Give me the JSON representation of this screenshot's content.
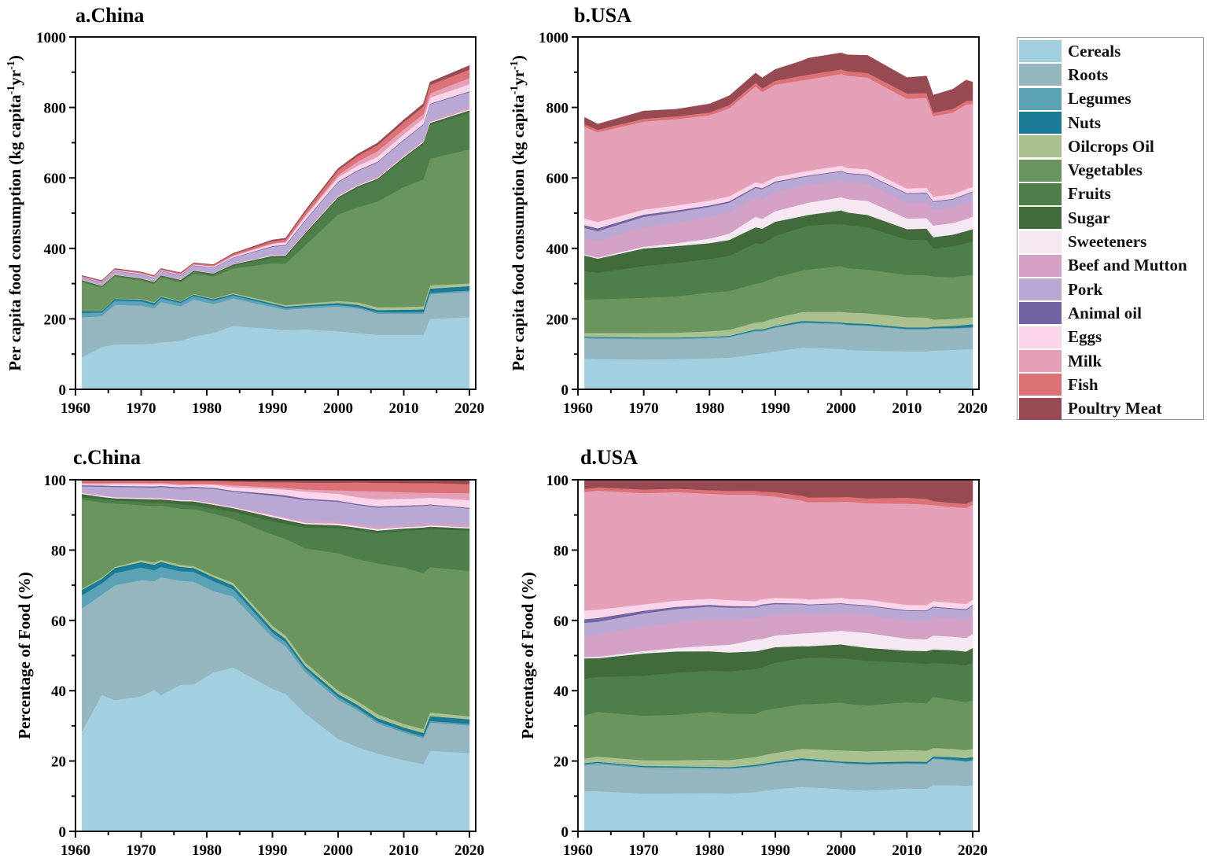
{
  "figure": {
    "legend": [
      {
        "name": "Cereals",
        "color": "#a3d0e1"
      },
      {
        "name": "Roots",
        "color": "#95b5bf"
      },
      {
        "name": "Legumes",
        "color": "#5ba2b4"
      },
      {
        "name": "Nuts",
        "color": "#1b7b96"
      },
      {
        "name": "Oilcrops Oil",
        "color": "#a9c18e"
      },
      {
        "name": "Vegetables",
        "color": "#6a955f"
      },
      {
        "name": "Fruits",
        "color": "#4e7f4a"
      },
      {
        "name": "Sugar",
        "color": "#426b3b"
      },
      {
        "name": "Sweeteners",
        "color": "#f6e8f2"
      },
      {
        "name": "Beef and Mutton",
        "color": "#d3a0c6"
      },
      {
        "name": "Pork",
        "color": "#b8a8d3"
      },
      {
        "name": "Animal oil",
        "color": "#7263a3"
      },
      {
        "name": "Eggs",
        "color": "#fbd5ea"
      },
      {
        "name": "Milk",
        "color": "#e4a0b6"
      },
      {
        "name": "Fish",
        "color": "#dc7176"
      },
      {
        "name": "Poultry Meat",
        "color": "#984a52"
      }
    ]
  },
  "chart_data": [
    {
      "panel": "a",
      "type": "area",
      "stacked": true,
      "title": "a.China",
      "xlabel": "",
      "ylabel": "Per capita food consumption (kg capita-1 yr-1)",
      "ylabel_parts": [
        "Per capita food consumption (kg capita",
        "-1",
        "yr",
        "-1",
        ")"
      ],
      "xlim": [
        1960,
        2020
      ],
      "ylim": [
        0,
        1000
      ],
      "xticks": [
        "1960",
        "1970",
        "1980",
        "1990",
        "2000",
        "2010",
        "2020"
      ],
      "yticks": [
        "0",
        "200",
        "400",
        "600",
        "800",
        "1000"
      ],
      "country": "China",
      "x": [
        1961,
        1964,
        1966,
        1970,
        1972,
        1973,
        1976,
        1978,
        1981,
        1984,
        1990,
        1992,
        1995,
        2000,
        2003,
        2006,
        2010,
        2013,
        2014,
        2020
      ],
      "series_values": [
        [
          92,
          120,
          128,
          128,
          130,
          133,
          138,
          150,
          160,
          180,
          172,
          168,
          170,
          165,
          160,
          155,
          155,
          155,
          200,
          205
        ],
        [
          113,
          88,
          112,
          110,
          100,
          115,
          98,
          105,
          82,
          78,
          62,
          58,
          60,
          70,
          70,
          60,
          60,
          60,
          70,
          72
        ],
        [
          12,
          10,
          12,
          12,
          10,
          10,
          9,
          10,
          10,
          8,
          6,
          5,
          5,
          5,
          4,
          4,
          4,
          4,
          4,
          4
        ],
        [
          5,
          4,
          5,
          5,
          5,
          5,
          4,
          4,
          4,
          4,
          4,
          4,
          4,
          5,
          6,
          6,
          7,
          8,
          12,
          12
        ],
        [
          1,
          1,
          1,
          2,
          2,
          2,
          2,
          2,
          2,
          3,
          4,
          4,
          5,
          6,
          7,
          8,
          8,
          9,
          9,
          8
        ],
        [
          82,
          66,
          62,
          52,
          52,
          53,
          53,
          58,
          62,
          70,
          110,
          118,
          165,
          245,
          270,
          300,
          340,
          360,
          360,
          380
        ],
        [
          2,
          3,
          3,
          3,
          3,
          3,
          4,
          4,
          5,
          8,
          16,
          18,
          30,
          45,
          55,
          60,
          80,
          100,
          95,
          105
        ],
        [
          3,
          2,
          2,
          3,
          3,
          3,
          3,
          4,
          4,
          4,
          5,
          5,
          5,
          5,
          5,
          5,
          5,
          5,
          6,
          6
        ],
        [
          1,
          1,
          1,
          1,
          1,
          1,
          1,
          1,
          1,
          1,
          2,
          2,
          2,
          3,
          3,
          3,
          3,
          3,
          3,
          3
        ],
        [
          1,
          1,
          1,
          1,
          1,
          1,
          1,
          1,
          1,
          1,
          2,
          2,
          3,
          4,
          4,
          5,
          5,
          5,
          6,
          7
        ],
        [
          5,
          7,
          9,
          9,
          9,
          10,
          10,
          12,
          14,
          16,
          22,
          24,
          30,
          35,
          36,
          38,
          40,
          42,
          44,
          42
        ],
        [
          1,
          1,
          1,
          1,
          1,
          1,
          1,
          1,
          1,
          1,
          2,
          2,
          2,
          2,
          2,
          2,
          2,
          2,
          2,
          2
        ],
        [
          1,
          1,
          2,
          2,
          2,
          2,
          2,
          2,
          3,
          4,
          6,
          7,
          10,
          12,
          13,
          14,
          15,
          16,
          17,
          20
        ],
        [
          1,
          1,
          1,
          1,
          1,
          1,
          1,
          1,
          1,
          2,
          2,
          2,
          3,
          6,
          12,
          16,
          14,
          12,
          12,
          18
        ],
        [
          2,
          2,
          2,
          2,
          2,
          2,
          3,
          3,
          3,
          4,
          6,
          7,
          10,
          14,
          16,
          17,
          20,
          22,
          24,
          24
        ],
        [
          1,
          1,
          1,
          1,
          1,
          1,
          1,
          1,
          1,
          2,
          3,
          3,
          4,
          5,
          5,
          6,
          7,
          8,
          8,
          11
        ]
      ]
    },
    {
      "panel": "b",
      "type": "area",
      "stacked": true,
      "title": "b.USA",
      "xlabel": "",
      "ylabel": "Per capita food consumption (kg capita-1 yr-1)",
      "ylabel_parts": [
        "Per capita food consumption (kg capita",
        "-1",
        "yr",
        "-1",
        ")"
      ],
      "xlim": [
        1960,
        2020
      ],
      "ylim": [
        0,
        1000
      ],
      "xticks": [
        "1960",
        "1970",
        "1980",
        "1990",
        "2000",
        "2010",
        "2020"
      ],
      "yticks": [
        "0",
        "200",
        "400",
        "600",
        "800",
        "1000"
      ],
      "country": "USA",
      "x": [
        1961,
        1963,
        1970,
        1975,
        1980,
        1983,
        1987,
        1988,
        1990,
        1994,
        1995,
        2000,
        2001,
        2004,
        2010,
        2013,
        2014,
        2017,
        2019,
        2020
      ],
      "series_values": [
        [
          88,
          86,
          85,
          86,
          88,
          90,
          100,
          102,
          108,
          118,
          118,
          115,
          112,
          110,
          108,
          108,
          110,
          112,
          114,
          115
        ],
        [
          57,
          58,
          58,
          57,
          57,
          58,
          65,
          63,
          67,
          70,
          70,
          70,
          70,
          70,
          62,
          62,
          62,
          60,
          60,
          60
        ],
        [
          3,
          3,
          2,
          2,
          2,
          2,
          2,
          2,
          2,
          2,
          2,
          2,
          2,
          2,
          2,
          2,
          2,
          2,
          2,
          2
        ],
        [
          2,
          2,
          2,
          2,
          2,
          2,
          3,
          3,
          3,
          4,
          4,
          3,
          4,
          4,
          4,
          4,
          4,
          6,
          7,
          8
        ],
        [
          10,
          11,
          13,
          14,
          16,
          17,
          20,
          21,
          23,
          25,
          26,
          30,
          30,
          30,
          29,
          28,
          20,
          20,
          20,
          20
        ],
        [
          95,
          96,
          100,
          103,
          110,
          110,
          110,
          112,
          115,
          118,
          120,
          130,
          126,
          124,
          120,
          120,
          122,
          118,
          120,
          120
        ],
        [
          80,
          75,
          90,
          95,
          95,
          100,
          115,
          110,
          118,
          122,
          125,
          120,
          122,
          120,
          100,
          100,
          80,
          88,
          92,
          95
        ],
        [
          45,
          40,
          50,
          48,
          45,
          45,
          45,
          43,
          40,
          32,
          30,
          38,
          36,
          35,
          30,
          32,
          32,
          33,
          34,
          35
        ],
        [
          3,
          3,
          5,
          8,
          13,
          18,
          30,
          28,
          30,
          34,
          35,
          37,
          38,
          40,
          30,
          30,
          33,
          33,
          34,
          35
        ],
        [
          47,
          48,
          55,
          58,
          62,
          60,
          55,
          56,
          55,
          52,
          50,
          47,
          48,
          50,
          45,
          46,
          45,
          45,
          45,
          45
        ],
        [
          28,
          27,
          30,
          30,
          28,
          28,
          27,
          28,
          26,
          25,
          25,
          26,
          24,
          23,
          25,
          25,
          22,
          22,
          25,
          25
        ],
        [
          8,
          8,
          6,
          5,
          4,
          4,
          3,
          3,
          3,
          2,
          2,
          2,
          2,
          2,
          2,
          2,
          2,
          2,
          2,
          2
        ],
        [
          19,
          18,
          14,
          14,
          14,
          14,
          13,
          13,
          13,
          13,
          13,
          15,
          14,
          15,
          13,
          13,
          13,
          13,
          13,
          13
        ],
        [
          260,
          255,
          250,
          245,
          242,
          250,
          272,
          260,
          262,
          260,
          260,
          260,
          262,
          260,
          255,
          255,
          228,
          232,
          240,
          235
        ],
        [
          7,
          7,
          8,
          8,
          8,
          9,
          10,
          10,
          11,
          13,
          13,
          13,
          13,
          13,
          15,
          14,
          10,
          10,
          10,
          10
        ],
        [
          20,
          16,
          22,
          20,
          24,
          26,
          28,
          30,
          32,
          42,
          47,
          47,
          46,
          50,
          45,
          48,
          50,
          56,
          60,
          52
        ]
      ]
    },
    {
      "panel": "c",
      "type": "area",
      "stacked": true,
      "normalized": true,
      "title": "c.China",
      "xlabel": "",
      "ylabel": "Percentage of Food (%)",
      "xlim": [
        1960,
        2020
      ],
      "ylim": [
        0,
        100
      ],
      "xticks": [
        "1960",
        "1970",
        "1980",
        "1990",
        "2000",
        "2010",
        "2020"
      ],
      "yticks": [
        "0",
        "20",
        "40",
        "60",
        "80",
        "100"
      ],
      "country": "China",
      "source": "percent share of panel a"
    },
    {
      "panel": "d",
      "type": "area",
      "stacked": true,
      "normalized": true,
      "title": "d.USA",
      "xlabel": "",
      "ylabel": "Percentage of Food (%)",
      "xlim": [
        1960,
        2020
      ],
      "ylim": [
        0,
        100
      ],
      "xticks": [
        "1960",
        "1970",
        "1980",
        "1990",
        "2000",
        "2010",
        "2020"
      ],
      "yticks": [
        "0",
        "20",
        "40",
        "60",
        "80",
        "100"
      ],
      "country": "USA",
      "source": "percent share of panel b"
    }
  ]
}
